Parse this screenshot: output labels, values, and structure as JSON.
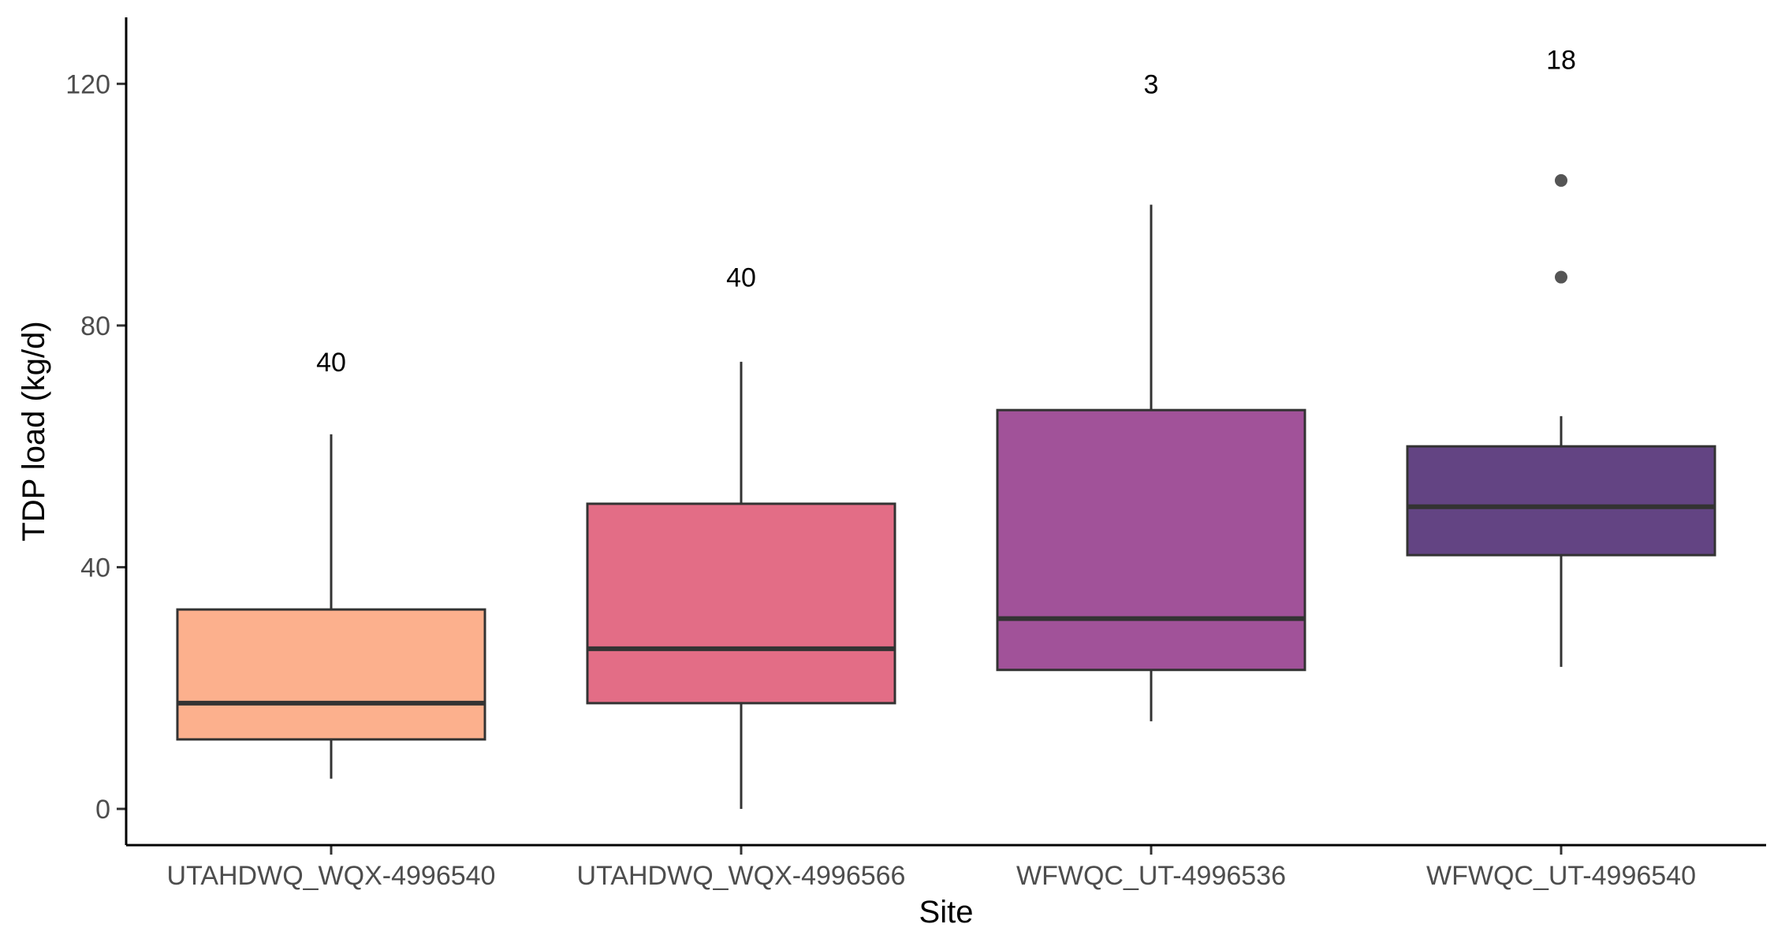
{
  "chart_data": {
    "type": "box",
    "xlabel": "Site",
    "ylabel": "TDP load (kg/d)",
    "ylim": [
      -6,
      131
    ],
    "yticks": [
      0,
      40,
      80,
      120
    ],
    "grid": false,
    "legend": "none",
    "categories": [
      "UTAHDWQ_WQX-4996540",
      "UTAHDWQ_WQX-4996566",
      "WFWQC_UT-4996536",
      "WFWQC_UT-4996540"
    ],
    "boxes": [
      {
        "category": "UTAHDWQ_WQX-4996540",
        "whisker_low": 5,
        "q1": 11.5,
        "median": 17.5,
        "q3": 33,
        "whisker_high": 62,
        "outliers": [],
        "count_label": "40",
        "count_y": 74,
        "color": "#fcb08d"
      },
      {
        "category": "UTAHDWQ_WQX-4996566",
        "whisker_low": 0,
        "q1": 17.5,
        "median": 26.5,
        "q3": 50.5,
        "whisker_high": 74,
        "outliers": [],
        "count_label": "40",
        "count_y": 88,
        "color": "#e36d86"
      },
      {
        "category": "WFWQC_UT-4996536",
        "whisker_low": 14.5,
        "q1": 23,
        "median": 31.5,
        "q3": 66,
        "whisker_high": 100,
        "outliers": [],
        "count_label": "3",
        "count_y": 120,
        "color": "#a15299"
      },
      {
        "category": "WFWQC_UT-4996540",
        "whisker_low": 23.5,
        "q1": 42,
        "median": 50,
        "q3": 60,
        "whisker_high": 65,
        "outliers": [
          88,
          104
        ],
        "count_label": "18",
        "count_y": 124,
        "color": "#634483"
      }
    ]
  }
}
